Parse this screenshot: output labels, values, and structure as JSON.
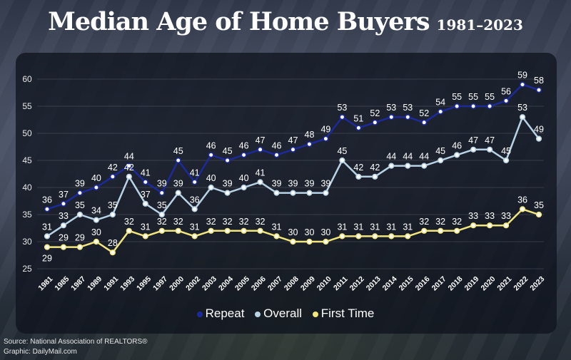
{
  "header": {
    "title": "Median Age of Home Buyers",
    "subtitle": "1981–2023"
  },
  "source": {
    "line1": "Source: National Association of REALTORS®",
    "line2": "Graphic: DailyMail.com"
  },
  "colors": {
    "repeat": "#1c2a9c",
    "overall": "#b9d3e6",
    "first_time": "#f2e67c"
  },
  "chart_data": {
    "type": "line",
    "categories": [
      "1981",
      "1985",
      "1987",
      "1989",
      "1991",
      "1993",
      "1995",
      "1997",
      "2000",
      "2002",
      "2003",
      "2004",
      "2005",
      "2006",
      "2007",
      "2008",
      "2009",
      "2010",
      "2011",
      "2012",
      "2013",
      "2014",
      "2015",
      "2016",
      "2017",
      "2018",
      "2019",
      "2020",
      "2021",
      "2022",
      "2023"
    ],
    "ylim": [
      25,
      60
    ],
    "yticks": [
      25,
      30,
      35,
      40,
      45,
      50,
      55,
      60
    ],
    "grid": true,
    "legend_position": "bottom",
    "series": [
      {
        "name": "Repeat",
        "values": [
          36,
          37,
          39,
          40,
          42,
          44,
          41,
          39,
          45,
          41,
          46,
          45,
          46,
          47,
          46,
          47,
          48,
          49,
          53,
          51,
          52,
          53,
          53,
          52,
          54,
          55,
          55,
          55,
          56,
          59,
          58
        ]
      },
      {
        "name": "Overall",
        "values": [
          31,
          33,
          35,
          34,
          35,
          42,
          37,
          35,
          39,
          36,
          40,
          39,
          40,
          41,
          39,
          39,
          39,
          39,
          45,
          42,
          42,
          44,
          44,
          44,
          45,
          46,
          47,
          47,
          45,
          53,
          49
        ]
      },
      {
        "name": "First Time",
        "values": [
          29,
          29,
          29,
          30,
          28,
          32,
          31,
          32,
          32,
          31,
          32,
          32,
          32,
          32,
          31,
          30,
          30,
          30,
          31,
          31,
          31,
          31,
          31,
          32,
          32,
          32,
          33,
          33,
          33,
          36,
          35
        ]
      }
    ]
  }
}
